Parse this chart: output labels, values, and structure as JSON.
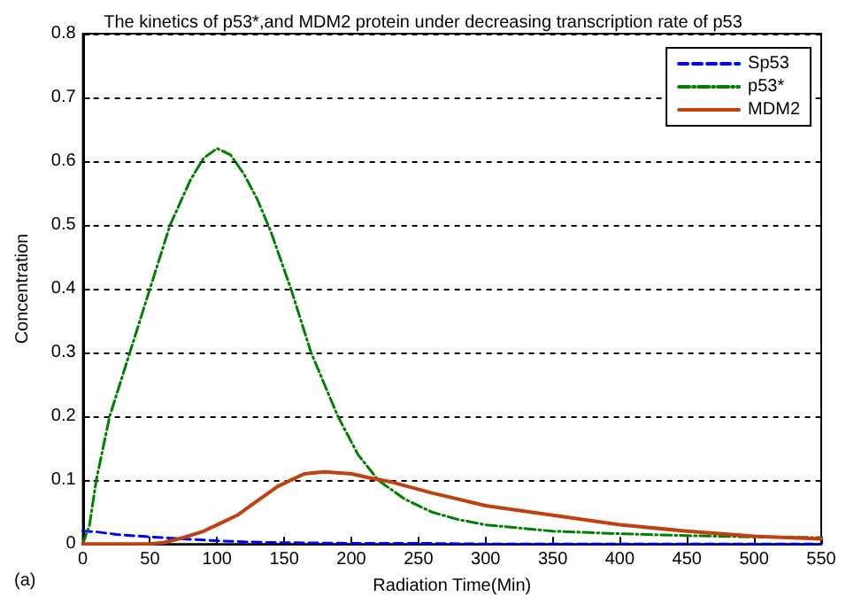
{
  "chart_data": {
    "type": "line",
    "title": "The kinetics of p53*,and MDM2 protein under decreasing transcription rate of p53",
    "xlabel": "Radiation Time(Min)",
    "ylabel": "Concentration",
    "annotations": [
      "(a)"
    ],
    "xlim": [
      0,
      550
    ],
    "xticks": [
      0,
      50,
      100,
      150,
      200,
      250,
      300,
      350,
      400,
      450,
      500,
      550
    ],
    "ylim": [
      0,
      0.8
    ],
    "yticks": [
      0,
      0.1,
      0.2,
      0.3,
      0.4,
      0.5,
      0.6,
      0.7,
      0.8
    ],
    "grid": "y",
    "legend": "top right",
    "marker": "none",
    "series": [
      {
        "name": "Sp53",
        "color": "#0000ff",
        "line_style": "dashed",
        "x": [
          0,
          10,
          25,
          50,
          75,
          100,
          125,
          150,
          200,
          250,
          300,
          400,
          500,
          550
        ],
        "values": [
          0.02,
          0.019,
          0.015,
          0.011,
          0.008,
          0.005,
          0.003,
          0.002,
          0.001,
          0.001,
          0,
          0,
          0,
          0
        ]
      },
      {
        "name": "p53*",
        "color": "#008000",
        "line_style": "dashdot",
        "x": [
          0,
          5,
          10,
          20,
          35,
          50,
          65,
          80,
          90,
          100,
          110,
          120,
          130,
          140,
          155,
          170,
          190,
          205,
          220,
          240,
          260,
          280,
          300,
          350,
          400,
          450,
          500,
          550
        ],
        "values": [
          0,
          0.03,
          0.1,
          0.2,
          0.3,
          0.4,
          0.5,
          0.57,
          0.605,
          0.62,
          0.61,
          0.58,
          0.54,
          0.49,
          0.4,
          0.3,
          0.2,
          0.14,
          0.1,
          0.07,
          0.05,
          0.038,
          0.03,
          0.02,
          0.016,
          0.013,
          0.011,
          0.01
        ]
      },
      {
        "name": "MDM2",
        "color": "#c04010",
        "line_style": "solid",
        "x": [
          0,
          50,
          60,
          75,
          90,
          100,
          115,
          125,
          135,
          145,
          155,
          165,
          180,
          200,
          215,
          230,
          260,
          300,
          350,
          400,
          450,
          500,
          550
        ],
        "values": [
          0,
          0,
          0.002,
          0.01,
          0.02,
          0.03,
          0.045,
          0.06,
          0.075,
          0.09,
          0.1,
          0.11,
          0.113,
          0.11,
          0.103,
          0.097,
          0.08,
          0.06,
          0.045,
          0.03,
          0.02,
          0.012,
          0.008
        ]
      }
    ]
  }
}
